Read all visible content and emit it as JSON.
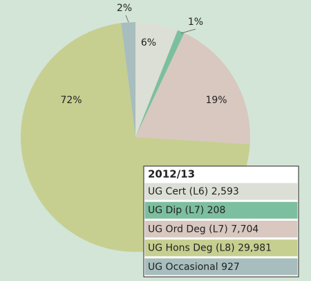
{
  "chart_data": {
    "type": "pie",
    "legend_title": "2012/13",
    "categories": [
      "UG Cert (L6) 2,593",
      "UG Dip (L7) 208",
      "UG Ord Deg (L7) 7,704",
      "UG Hons Deg (L8) 29,981",
      "UG Occasional  927"
    ],
    "values": [
      6,
      1,
      19,
      72,
      2
    ],
    "value_labels": [
      "6%",
      "1%",
      "19%",
      "72%",
      "2%"
    ],
    "colors": [
      "#dcdfd5",
      "#7cbf9f",
      "#d8c8c0",
      "#c6cf90",
      "#a8bdbd"
    ]
  }
}
